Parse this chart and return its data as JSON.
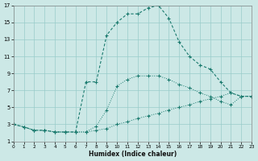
{
  "xlabel": "Humidex (Indice chaleur)",
  "bg_color": "#cce8e6",
  "grid_color": "#99ccca",
  "line_color": "#1a7a6e",
  "xlim": [
    0,
    23
  ],
  "ylim": [
    1,
    17
  ],
  "xtick_step": 1,
  "yticks": [
    1,
    3,
    5,
    7,
    9,
    11,
    13,
    15,
    17
  ],
  "line1_x": [
    0,
    1,
    2,
    3,
    4,
    5,
    6,
    7,
    8,
    9,
    10,
    11,
    12,
    13,
    14,
    15,
    16,
    17,
    18,
    19,
    20,
    21,
    22,
    23
  ],
  "line1_y": [
    3,
    2.7,
    2.3,
    2.3,
    2.1,
    2.1,
    2.1,
    2.1,
    2.3,
    2.5,
    3.0,
    3.3,
    3.7,
    4.0,
    4.3,
    4.7,
    5.0,
    5.3,
    5.7,
    6.0,
    6.3,
    6.7,
    6.3,
    6.3
  ],
  "line2_x": [
    0,
    1,
    2,
    3,
    4,
    5,
    6,
    7,
    8,
    9,
    10,
    11,
    12,
    13,
    14,
    15,
    16,
    17,
    18,
    19,
    20,
    21,
    22,
    23
  ],
  "line2_y": [
    3,
    2.7,
    2.3,
    2.3,
    2.1,
    2.1,
    2.1,
    2.1,
    2.8,
    4.7,
    7.5,
    8.3,
    8.7,
    8.7,
    8.7,
    8.3,
    7.7,
    7.3,
    6.7,
    6.3,
    5.7,
    5.3,
    6.3,
    6.3
  ],
  "line3_x": [
    0,
    1,
    2,
    3,
    4,
    5,
    6,
    7,
    8,
    9,
    10,
    11,
    12,
    13,
    14,
    15,
    16,
    17,
    18,
    19,
    20,
    21,
    22,
    23
  ],
  "line3_y": [
    3,
    2.7,
    2.3,
    2.3,
    2.1,
    2.1,
    2.1,
    8.0,
    8.0,
    13.5,
    15.0,
    16.0,
    16.0,
    16.7,
    17.0,
    15.5,
    12.7,
    11.0,
    10.0,
    9.5,
    8.0,
    6.7,
    6.3,
    6.3
  ]
}
